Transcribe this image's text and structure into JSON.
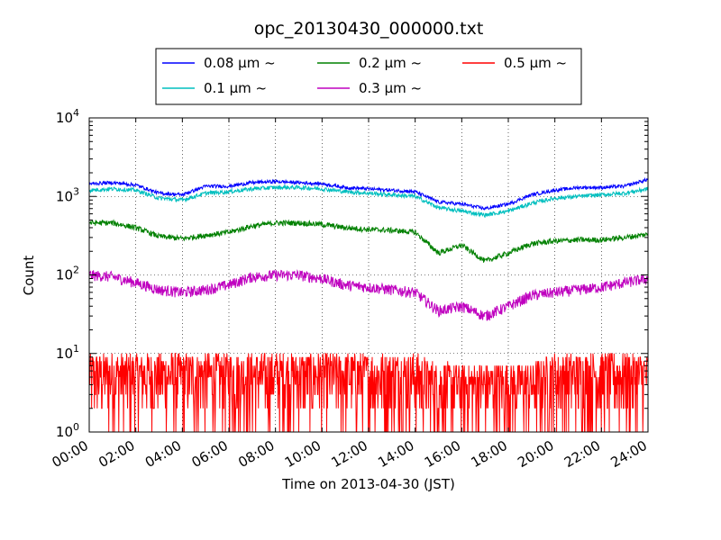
{
  "chart_data": {
    "type": "line",
    "title": "opc_20130430_000000.txt",
    "xlabel": "Time on 2013-04-30 (JST)",
    "ylabel": "Count",
    "yscale": "log",
    "ylim": [
      1,
      10000
    ],
    "xlim": [
      0,
      24
    ],
    "x_unit": "hours (JST)",
    "x_ticks": [
      "00:00",
      "02:00",
      "04:00",
      "06:00",
      "08:00",
      "10:00",
      "12:00",
      "14:00",
      "16:00",
      "18:00",
      "20:00",
      "22:00",
      "24:00"
    ],
    "y_ticks": [
      {
        "base": "10",
        "exp": "0"
      },
      {
        "base": "10",
        "exp": "1"
      },
      {
        "base": "10",
        "exp": "2"
      },
      {
        "base": "10",
        "exp": "3"
      },
      {
        "base": "10",
        "exp": "4"
      }
    ],
    "grid": true,
    "legend_position": "top, outside the plot",
    "series": [
      {
        "name": "0.08 μm ~",
        "color": "#0000ff",
        "x": [
          0,
          1,
          2,
          3,
          4,
          5,
          6,
          7,
          8,
          9,
          10,
          11,
          12,
          13,
          14,
          15,
          16,
          17,
          18,
          19,
          20,
          21,
          22,
          23,
          24
        ],
        "values": [
          1450,
          1500,
          1400,
          1100,
          1050,
          1350,
          1350,
          1500,
          1550,
          1500,
          1450,
          1300,
          1250,
          1200,
          1150,
          850,
          800,
          700,
          800,
          1050,
          1200,
          1300,
          1300,
          1350,
          1650
        ]
      },
      {
        "name": "0.1 μm ~",
        "color": "#00bfbf",
        "x": [
          0,
          1,
          2,
          3,
          4,
          5,
          6,
          7,
          8,
          9,
          10,
          11,
          12,
          13,
          14,
          15,
          16,
          17,
          18,
          19,
          20,
          21,
          22,
          23,
          24
        ],
        "values": [
          1200,
          1250,
          1200,
          950,
          900,
          1100,
          1150,
          1250,
          1300,
          1300,
          1250,
          1150,
          1100,
          1050,
          1000,
          720,
          650,
          580,
          650,
          820,
          950,
          1000,
          1050,
          1100,
          1250
        ]
      },
      {
        "name": "0.2 μm ~",
        "color": "#008000",
        "x": [
          0,
          1,
          2,
          3,
          4,
          5,
          6,
          7,
          8,
          9,
          10,
          11,
          12,
          13,
          14,
          15,
          16,
          17,
          18,
          19,
          20,
          21,
          22,
          23,
          24
        ],
        "values": [
          460,
          460,
          400,
          310,
          290,
          320,
          350,
          420,
          460,
          460,
          440,
          400,
          380,
          370,
          350,
          190,
          240,
          150,
          190,
          250,
          270,
          280,
          280,
          300,
          330
        ]
      },
      {
        "name": "0.3 μm ~",
        "color": "#bf00bf",
        "x": [
          0,
          1,
          2,
          3,
          4,
          5,
          6,
          7,
          8,
          9,
          10,
          11,
          12,
          13,
          14,
          15,
          16,
          17,
          18,
          19,
          20,
          21,
          22,
          23,
          24
        ],
        "values": [
          100,
          95,
          80,
          65,
          60,
          65,
          75,
          95,
          100,
          100,
          90,
          75,
          70,
          65,
          60,
          35,
          40,
          30,
          40,
          55,
          60,
          65,
          70,
          80,
          90
        ]
      },
      {
        "name": "0.5 μm ~",
        "color": "#ff0000",
        "x": [
          0,
          1,
          2,
          3,
          4,
          5,
          6,
          7,
          8,
          9,
          10,
          11,
          12,
          13,
          14,
          15,
          16,
          17,
          18,
          19,
          20,
          21,
          22,
          23,
          24
        ],
        "values": [
          4,
          4,
          4,
          4,
          4,
          4,
          4,
          4,
          4,
          4,
          4,
          4,
          4,
          4,
          4,
          3,
          3,
          3,
          3,
          3,
          4,
          4,
          4,
          4,
          4
        ]
      }
    ]
  }
}
